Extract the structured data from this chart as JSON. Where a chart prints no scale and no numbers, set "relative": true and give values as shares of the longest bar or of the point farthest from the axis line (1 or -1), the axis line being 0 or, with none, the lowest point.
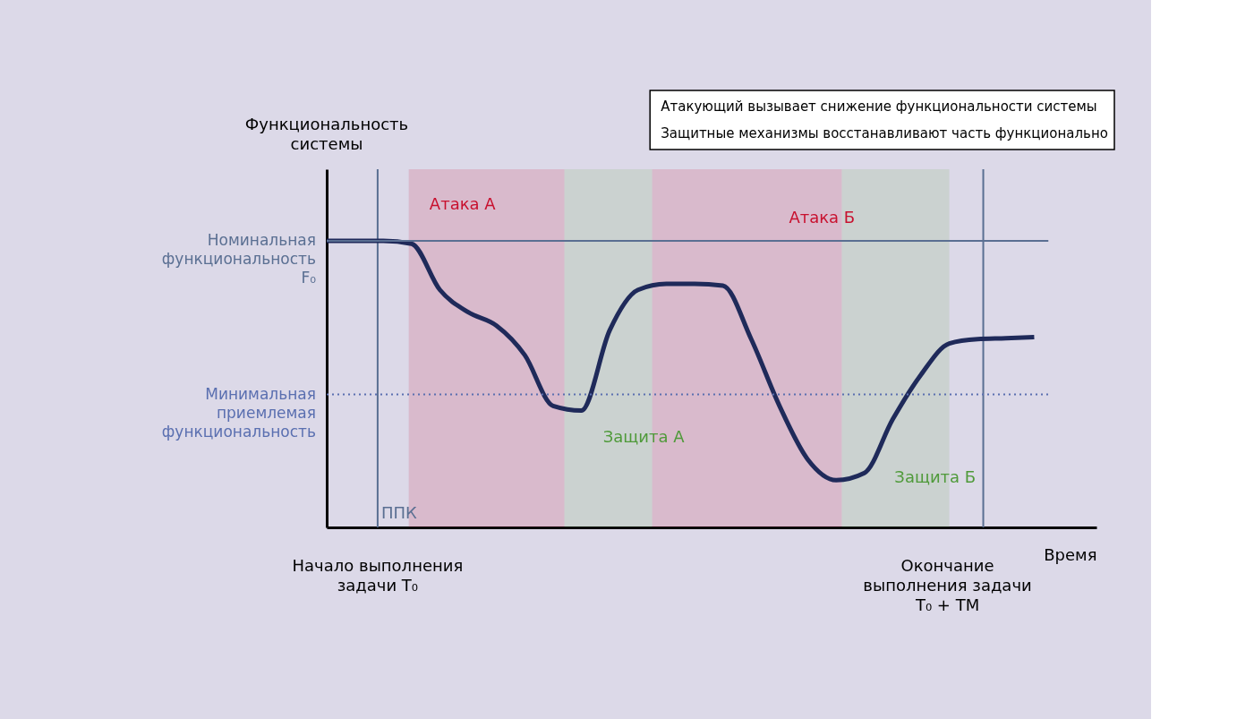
{
  "chart_data": {
    "type": "line",
    "relative": true,
    "xlabel": "Время",
    "categories": [
      null,
      null,
      null,
      null,
      null,
      null,
      null,
      null,
      null,
      null,
      null,
      null,
      null,
      null,
      null,
      null,
      null,
      null,
      null,
      null,
      null,
      null,
      null,
      null,
      null,
      null
    ],
    "series": [
      {
        "color": "#1f2a5a",
        "values": [
          1,
          1,
          1,
          0.99,
          0.829,
          0.751,
          0.704,
          0.601,
          0.424,
          0.408,
          0.688,
          0.829,
          0.85,
          0.85,
          0.844,
          0.657,
          0.424,
          0.237,
          0.165,
          0.19,
          0.377,
          0.533,
          0.642,
          0.657,
          0.66,
          0.664
        ]
      }
    ],
    "ref_lines": [
      {
        "axis": "y",
        "value": 1,
        "label": "Номинальная функциональность F₀",
        "color": "#5a6f92",
        "line_style": "solid"
      },
      {
        "axis": "y",
        "value": 0.464,
        "label": "Минимальная приемлемая функциональность",
        "color": "#5a6fb0",
        "line_style": "dotted"
      }
    ],
    "annotations": [
      "Атака А",
      "Атака Б",
      "Защита А",
      "Защита Б",
      "ППК",
      "Начало выполнения задачи T₀",
      "Окончание выполнения задачи T₀ + TM",
      "Атакующий вызывает снижение функциональности системы",
      "Защитные механизмы восстанавливают часть функционально",
      "Функциональность системы"
    ]
  }
}
